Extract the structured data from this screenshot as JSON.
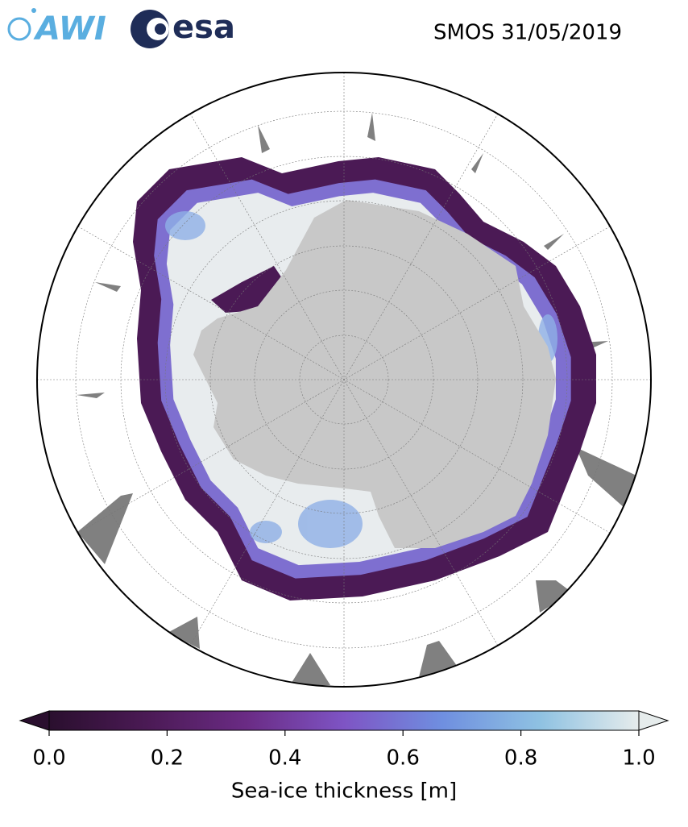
{
  "header": {
    "logos": [
      "AWI",
      "esa"
    ],
    "title": "SMOS 31/05/2019"
  },
  "colorbar": {
    "label": "Sea-ice thickness [m]",
    "lim": [
      0,
      1
    ],
    "ticks": [
      {
        "value": 0,
        "label": "0.0"
      },
      0.2,
      0.4,
      0.6,
      0.8,
      {
        "value": 1,
        "label": "1.0"
      }
    ],
    "colors": [
      "#2a0f2e",
      "#4b1a55",
      "#6a2b84",
      "#7e54c4",
      "#6f8fe0",
      "#8fc2e2",
      "#e6ecec"
    ],
    "extend": "both"
  }
}
